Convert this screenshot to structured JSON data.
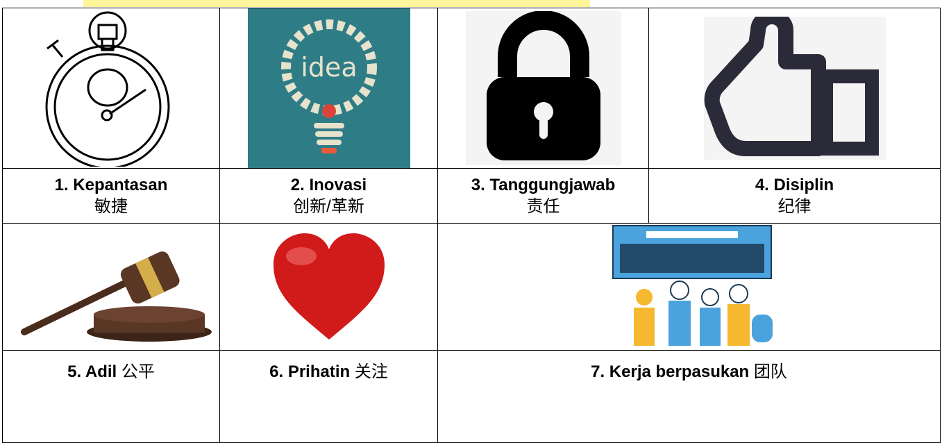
{
  "table": {
    "rows": [
      [
        {
          "name": "1. Kepantasan",
          "chinese": "敏捷"
        },
        {
          "name": "2. Inovasi",
          "chinese": "创新/革新"
        },
        {
          "name": "3. Tanggungjawab",
          "chinese": "责任"
        },
        {
          "name": "4. Disiplin",
          "chinese": "纪律"
        }
      ],
      [
        {
          "name": "5. Adil",
          "chinese": "公平"
        },
        {
          "name": "6. Prihatin",
          "chinese": "关注"
        },
        {
          "name": "7. Kerja berpasukan",
          "chinese": "团队"
        }
      ]
    ]
  }
}
